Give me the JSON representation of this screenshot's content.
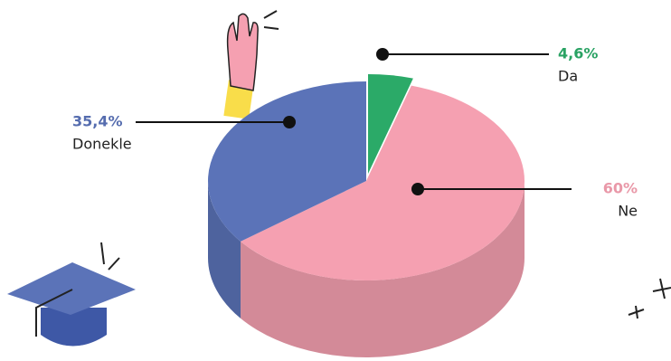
{
  "chart_data": {
    "type": "pie",
    "categories": [
      "Da",
      "Ne",
      "Donekle"
    ],
    "values": [
      4.6,
      60,
      35.4
    ],
    "value_labels": [
      "4,6%",
      "60%",
      "35,4%"
    ],
    "colors": [
      "#2baa68",
      "#f5a0b1",
      "#5b73b8"
    ]
  }
}
